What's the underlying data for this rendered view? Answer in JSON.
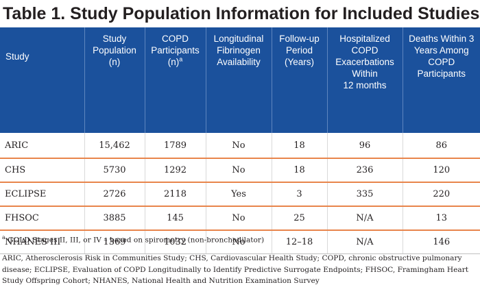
{
  "title": "Table 1. Study Population Information for Included Studies",
  "headers": [
    "Study",
    "Study\nPopulation\n(n)",
    "COPD\nParticipants\n(n)",
    "Longitudinal\nFibrinogen\nAvailability",
    "Follow-up\nPeriod\n(Years)",
    "Hospitalized\nCOPD\nExacerbations\nWithin\n12 months",
    "Deaths Within 3\nYears Among\nCOPD\nParticipants"
  ],
  "header_superscript": "a",
  "rows": [
    [
      "ARIC",
      "15,462",
      "1789",
      "No",
      "18",
      "96",
      "86"
    ],
    [
      "CHS",
      "5730",
      "1292",
      "No",
      "18",
      "236",
      "120"
    ],
    [
      "ECLIPSE",
      "2726",
      "2118",
      "Yes",
      "3",
      "335",
      "220"
    ],
    [
      "FHSOC",
      "3885",
      "145",
      "No",
      "25",
      "N/A",
      "13"
    ],
    [
      "NHANES III",
      "1369",
      "1032",
      "No",
      "12–18",
      "N/A",
      "146"
    ]
  ],
  "footnote_marker": "a",
  "footnote_text": " GOLD Stages II, III, or IV – based on spirometry (non-bronchodilator)",
  "abbreviations": "ARIC, Atherosclerosis Risk in Communities Study; CHS, Cardiovascular Health Study; COPD, chronic obstructive pulmonary disease; ECLIPSE, Evaluation of COPD Longitudinally to Identify Predictive Surrogate Endpoints; FHSOC, Framingham Heart Study Offspring Cohort; NHANES, National Health and Nutrition Examination Survey",
  "colors": {
    "header_bg": "#1b519c",
    "row_rule": "#e8844a"
  }
}
